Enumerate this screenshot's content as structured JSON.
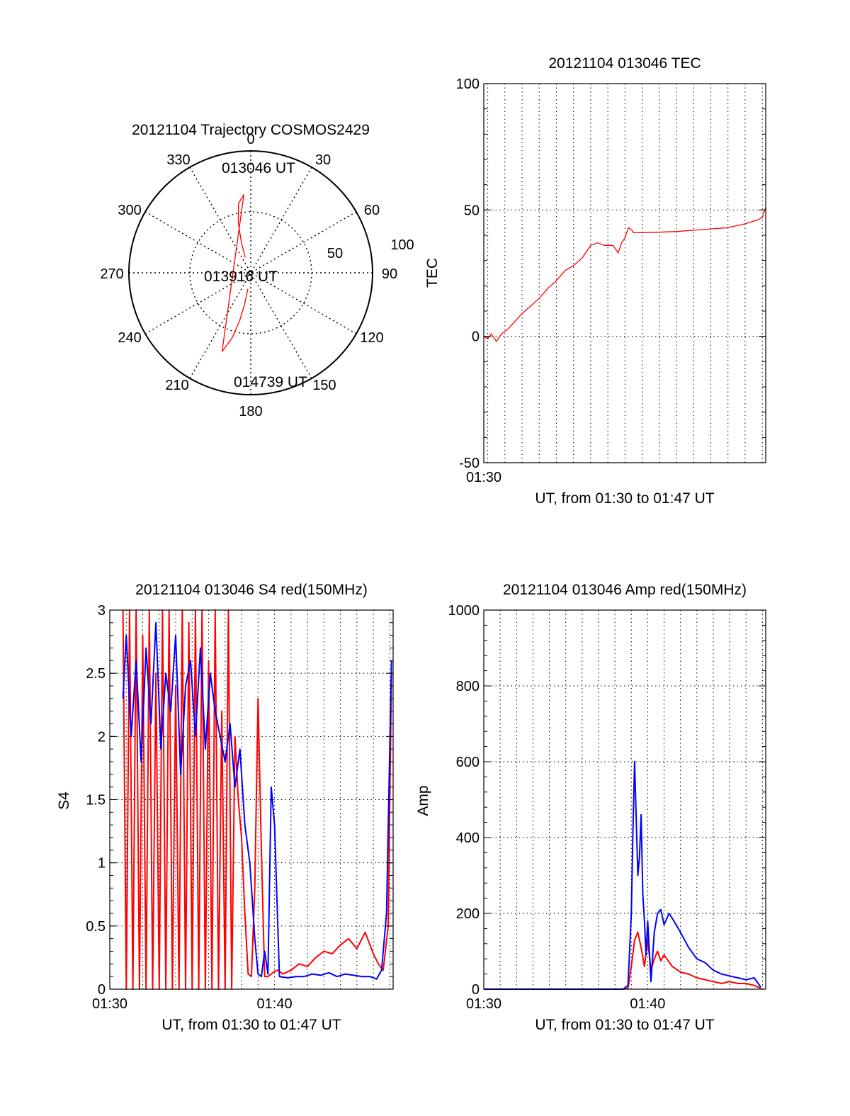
{
  "colors": {
    "red": "#ff0000",
    "blue": "#0000ff",
    "axis": "#000000",
    "grid": "#000000"
  },
  "chart_data": [
    {
      "type": "polar",
      "title": "20121104 Trajectory COSMOS2429",
      "angle_labels": [
        "0",
        "30",
        "60",
        "90",
        "120",
        "150",
        "180",
        "210",
        "240",
        "270",
        "300",
        "330"
      ],
      "radius_labels": [
        "50",
        "100"
      ],
      "point_labels": [
        "013046 UT",
        "013916 UT",
        "014739 UT"
      ],
      "series": [
        {
          "color": "red",
          "points": [
            [
              340,
              78
            ],
            [
              343,
              66
            ],
            [
              346,
              52
            ],
            [
              350,
              38
            ],
            [
              355,
              32
            ],
            [
              200,
              28
            ],
            [
              196,
              40
            ],
            [
              193,
              54
            ],
            [
              191,
              66
            ],
            [
              190,
              78
            ]
          ]
        }
      ]
    },
    {
      "type": "line",
      "title": "20121104 013046 TEC",
      "xlabel": "UT, from 01:30 to 01:47 UT",
      "ylabel": "TEC",
      "xlim": [
        0.77,
        17.2
      ],
      "ylim": [
        -50,
        100
      ],
      "yticks": [
        "-50",
        "0",
        "50",
        "100"
      ],
      "xtick_labels": [
        {
          "x": 0.77,
          "label": "01:30"
        }
      ],
      "series": [
        {
          "color": "red",
          "x": [
            0.77,
            1.0,
            1.2,
            1.5,
            1.8,
            2.2,
            2.6,
            3.0,
            3.5,
            4.0,
            4.5,
            5.0,
            5.5,
            6.0,
            6.5,
            7.0,
            7.4,
            7.8,
            8.3,
            8.6,
            8.8,
            9.0,
            9.2,
            9.4,
            9.5,
            9.7,
            10.0,
            11.0,
            12.0,
            13.0,
            14.0,
            15.0,
            16.0,
            16.7,
            17.0,
            17.2
          ],
          "y": [
            0,
            -1,
            1,
            -2,
            1,
            3,
            6,
            9,
            12,
            15,
            19,
            22,
            26,
            28,
            31,
            36,
            37,
            36,
            36,
            33,
            37,
            39,
            43,
            42,
            41,
            41,
            41,
            41.2,
            41.5,
            42,
            42.5,
            43,
            44.5,
            46,
            47,
            51
          ]
        }
      ]
    },
    {
      "type": "line",
      "title": "20121104 013046 S4 red(150MHz)",
      "xlabel": "UT, from 01:30 to 01:47 UT",
      "ylabel": "S4",
      "xlim": [
        0,
        17.2
      ],
      "ylim": [
        0,
        3
      ],
      "yticks": [
        "0",
        "0.5",
        "1",
        "1.5",
        "2",
        "2.5",
        "3"
      ],
      "xtick_labels": [
        {
          "x": 0,
          "label": "01:30"
        },
        {
          "x": 10,
          "label": "01:40"
        }
      ],
      "series": [
        {
          "color": "red",
          "x": [
            0.8,
            1.0,
            1.2,
            1.4,
            1.6,
            1.8,
            2.0,
            2.2,
            2.4,
            2.6,
            2.8,
            3.0,
            3.2,
            3.4,
            3.6,
            3.8,
            4.0,
            4.2,
            4.4,
            4.6,
            4.8,
            5.0,
            5.2,
            5.4,
            5.6,
            5.8,
            6.0,
            6.2,
            6.4,
            6.6,
            6.8,
            7.0,
            7.2,
            7.4,
            7.6,
            7.8,
            8.0,
            8.2,
            8.4,
            8.6,
            8.8,
            9.0,
            9.2,
            9.4,
            9.6,
            9.8,
            10.0,
            10.2,
            10.5,
            11.0,
            11.5,
            12.0,
            12.5,
            13.0,
            13.5,
            14.0,
            14.5,
            15.0,
            15.5,
            16.0,
            16.3,
            16.6,
            16.9,
            17.1
          ],
          "y": [
            3,
            0,
            3,
            0,
            3,
            0,
            2.8,
            0,
            3,
            0,
            2.5,
            0,
            3,
            0,
            3,
            0,
            2.4,
            0,
            3,
            0,
            2.9,
            0,
            3,
            0,
            3,
            0,
            2.6,
            0,
            3,
            0,
            2.2,
            0,
            3,
            0,
            2.0,
            1.5,
            1.2,
            0.6,
            0.12,
            0.1,
            0.8,
            2.3,
            1.1,
            0.1,
            0.1,
            0.12,
            0.14,
            0.15,
            0.12,
            0.15,
            0.2,
            0.18,
            0.25,
            0.3,
            0.28,
            0.35,
            0.4,
            0.32,
            0.45,
            0.28,
            0.2,
            0.15,
            0.5,
            2.5
          ]
        },
        {
          "color": "blue",
          "x": [
            0.8,
            1.0,
            1.3,
            1.6,
            1.9,
            2.2,
            2.5,
            2.8,
            3.1,
            3.4,
            3.7,
            4.0,
            4.3,
            4.6,
            4.9,
            5.2,
            5.5,
            5.8,
            6.1,
            6.4,
            6.7,
            7.0,
            7.3,
            7.6,
            7.9,
            8.2,
            8.5,
            8.8,
            9.0,
            9.2,
            9.4,
            9.6,
            9.8,
            10.0,
            10.3,
            10.8,
            11.3,
            11.8,
            12.3,
            12.8,
            13.3,
            13.8,
            14.3,
            14.8,
            15.3,
            15.8,
            16.2,
            16.5,
            16.8,
            17.1
          ],
          "y": [
            2.3,
            2.8,
            2.0,
            2.6,
            1.8,
            2.7,
            2.1,
            2.9,
            1.9,
            2.5,
            2.2,
            2.8,
            1.7,
            2.4,
            2.6,
            2.0,
            2.7,
            1.9,
            2.5,
            2.2,
            2.0,
            1.8,
            2.1,
            1.6,
            1.9,
            1.3,
            1.0,
            0.4,
            0.12,
            0.1,
            0.3,
            0.12,
            1.6,
            1.3,
            0.1,
            0.09,
            0.1,
            0.1,
            0.12,
            0.11,
            0.13,
            0.1,
            0.12,
            0.11,
            0.1,
            0.1,
            0.08,
            0.15,
            0.6,
            2.6
          ]
        }
      ]
    },
    {
      "type": "line",
      "title": "20121104 013046 Amp red(150MHz)",
      "xlabel": "UT, from 01:30 to 01:47 UT",
      "ylabel": "Amp",
      "xlim": [
        0,
        17.2
      ],
      "ylim": [
        0,
        1000
      ],
      "yticks": [
        "0",
        "200",
        "400",
        "600",
        "800",
        "1000"
      ],
      "xtick_labels": [
        {
          "x": 0,
          "label": "01:30"
        },
        {
          "x": 10,
          "label": "01:40"
        }
      ],
      "series": [
        {
          "color": "red",
          "x": [
            0,
            3,
            6,
            8.5,
            8.8,
            9.0,
            9.2,
            9.4,
            9.6,
            9.8,
            10.0,
            10.2,
            10.4,
            10.6,
            10.8,
            11.0,
            11.5,
            12.0,
            12.5,
            13.0,
            13.5,
            14.0,
            14.5,
            15.0,
            15.5,
            16.0,
            16.5,
            16.9
          ],
          "y": [
            0,
            0,
            0,
            0,
            2,
            60,
            130,
            150,
            110,
            60,
            130,
            50,
            80,
            100,
            75,
            90,
            60,
            45,
            40,
            30,
            25,
            20,
            15,
            20,
            15,
            15,
            10,
            2
          ]
        },
        {
          "color": "blue",
          "x": [
            0,
            3,
            6,
            8.5,
            8.8,
            9.0,
            9.1,
            9.2,
            9.4,
            9.5,
            9.6,
            9.7,
            9.8,
            9.9,
            10.0,
            10.2,
            10.4,
            10.6,
            10.8,
            11.0,
            11.3,
            11.6,
            12.0,
            12.5,
            13.0,
            13.5,
            14.0,
            14.5,
            15.0,
            15.5,
            16.0,
            16.5,
            16.9
          ],
          "y": [
            0,
            0,
            0,
            0,
            10,
            200,
            420,
            600,
            300,
            350,
            460,
            250,
            180,
            90,
            180,
            20,
            150,
            200,
            210,
            170,
            200,
            180,
            150,
            110,
            80,
            70,
            50,
            40,
            35,
            30,
            25,
            30,
            5
          ]
        }
      ]
    }
  ]
}
